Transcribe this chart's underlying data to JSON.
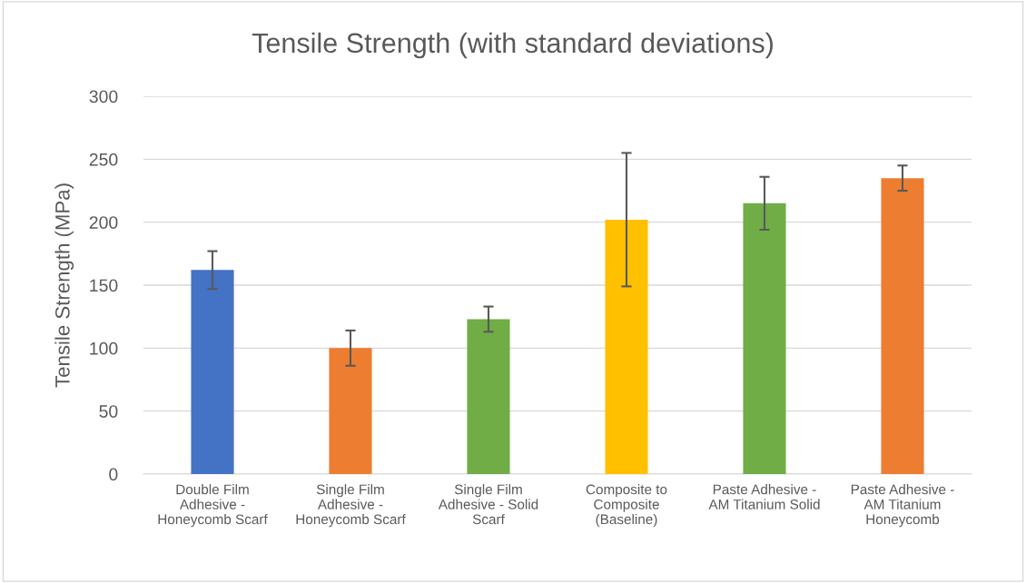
{
  "chart_data": {
    "type": "bar",
    "title": "Tensile Strength (with standard deviations)",
    "ylabel": "Tensile Strength (MPa)",
    "categories": [
      "Double Film\nAdhesive -\nHoneycomb Scarf",
      "Single Film\nAdhesive -\nHoneycomb Scarf",
      "Single Film\nAdhesive - Solid\nScarf",
      "Composite to\nComposite\n(Baseline)",
      "Paste Adhesive -\nAM Titanium Solid",
      "Paste Adhesive -\nAM Titanium\nHoneycomb"
    ],
    "values": [
      162,
      100,
      123,
      202,
      215,
      235
    ],
    "errors": [
      15,
      14,
      10,
      53,
      21,
      10
    ],
    "colors": [
      "#4472c4",
      "#ed7d31",
      "#70ad47",
      "#ffc000",
      "#70ad47",
      "#ed7d31"
    ],
    "ylim": [
      0,
      300
    ],
    "yticks": [
      0,
      50,
      100,
      150,
      200,
      250,
      300
    ],
    "grid": "y"
  }
}
